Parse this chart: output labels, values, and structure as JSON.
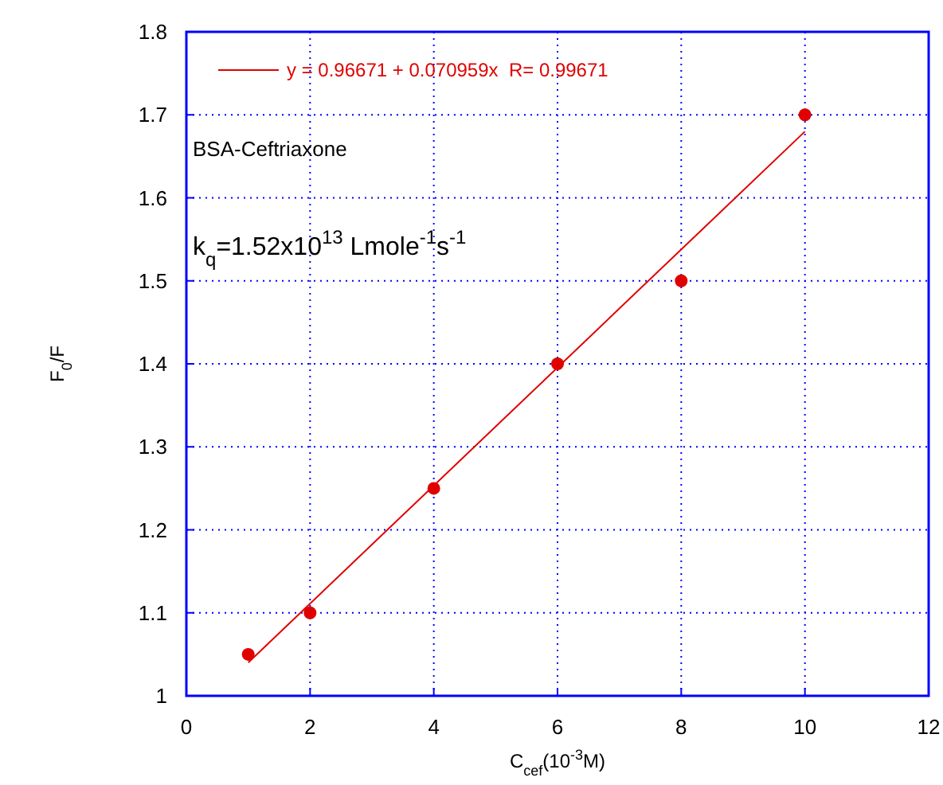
{
  "chart_data": {
    "type": "scatter",
    "xlabel": "C$_{cef}$(10$^{-3}$M)",
    "ylabel": "F$_{0}$/F",
    "xlim": [
      0,
      12
    ],
    "xticks": [
      0,
      2,
      4,
      6,
      8,
      10,
      12
    ],
    "ylim": [
      1,
      1.8
    ],
    "yticks": [
      1,
      1.1,
      1.2,
      1.3,
      1.4,
      1.5,
      1.6,
      1.7,
      1.8
    ],
    "grid": true,
    "legend": "top left",
    "marker": "circle",
    "series": [
      {
        "color": "#e00000",
        "x": [
          1,
          2,
          4,
          6,
          8,
          10
        ],
        "values": [
          1.05,
          1.1,
          1.25,
          1.4,
          1.5,
          1.7
        ]
      },
      {
        "type": "line",
        "name": "y = 0.96671 + 0.070959x  R= 0.99671",
        "color": "#e00000",
        "marker": "none",
        "line_style": "solid",
        "x": [
          1,
          10
        ],
        "values": [
          1.04,
          1.68
        ]
      }
    ],
    "annotations": [
      "BSA-Ceftriaxone",
      "k$_{q}$=1.52x10$^{13}$ Lmole$^{-1}$s$^{-1}$"
    ]
  }
}
